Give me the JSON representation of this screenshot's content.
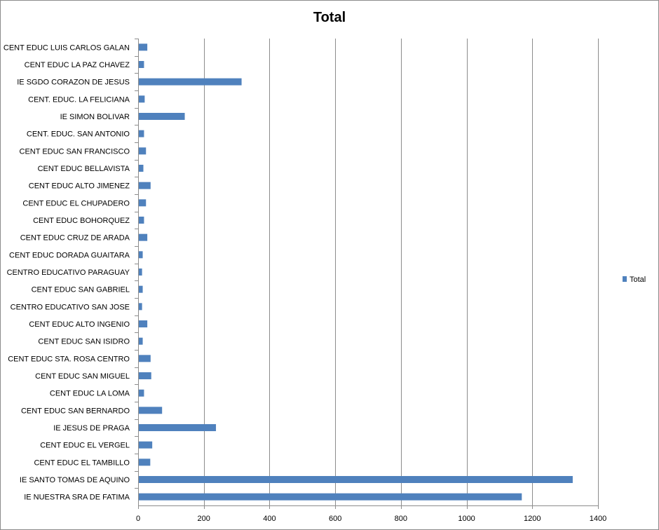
{
  "chart_data": {
    "type": "bar",
    "orientation": "horizontal",
    "title": "Total",
    "xlabel": "",
    "ylabel": "",
    "xlim": [
      0,
      1400
    ],
    "xticks": [
      0,
      200,
      400,
      600,
      800,
      1000,
      1200,
      1400
    ],
    "grid": true,
    "legend": "right",
    "bar_color": "#4F81BD",
    "categories": [
      "CENT EDUC LUIS CARLOS GALAN",
      "CENT EDUC LA PAZ CHAVEZ",
      "IE SGDO CORAZON DE JESUS",
      "CENT. EDUC. LA FELICIANA",
      "IE SIMON BOLIVAR",
      "CENT. EDUC. SAN ANTONIO",
      "CENT EDUC SAN FRANCISCO",
      "CENT EDUC BELLAVISTA",
      "CENT EDUC ALTO JIMENEZ",
      "CENT EDUC EL CHUPADERO",
      "CENT EDUC BOHORQUEZ",
      "CENT EDUC CRUZ DE ARADA",
      "CENT EDUC DORADA GUAITARA",
      "CENTRO EDUCATIVO PARAGUAY",
      "CENT  EDUC SAN GABRIEL",
      "CENTRO EDUCATIVO SAN JOSE",
      "CENT EDUC ALTO INGENIO",
      "CENT EDUC SAN ISIDRO",
      "CENT EDUC STA. ROSA CENTRO",
      "CENT EDUC SAN MIGUEL",
      "CENT EDUC  LA LOMA",
      "CENT EDUC SAN BERNARDO",
      "IE JESUS DE PRAGA",
      "CENT EDUC EL VERGEL",
      "CENT  EDUC EL TAMBILLO",
      "IE SANTO TOMAS DE AQUINO",
      "IE NUESTRA SRA DE FATIMA"
    ],
    "series": [
      {
        "name": "Total",
        "values": [
          28,
          18,
          315,
          20,
          142,
          18,
          24,
          16,
          38,
          24,
          18,
          28,
          14,
          12,
          14,
          12,
          28,
          14,
          38,
          40,
          18,
          73,
          237,
          43,
          37,
          1323,
          1168
        ]
      }
    ]
  }
}
